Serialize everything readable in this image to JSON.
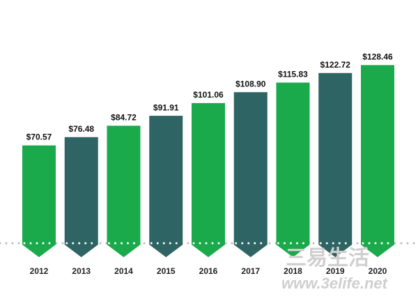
{
  "chart_data": {
    "type": "bar",
    "categories": [
      "2012",
      "2013",
      "2014",
      "2015",
      "2016",
      "2017",
      "2018",
      "2019",
      "2020"
    ],
    "values": [
      70.57,
      76.48,
      84.72,
      91.91,
      101.06,
      108.9,
      115.83,
      122.72,
      128.46
    ],
    "value_labels": [
      "$70.57",
      "$76.48",
      "$84.72",
      "$91.91",
      "$101.06",
      "$108.90",
      "$115.83",
      "$122.72",
      "$128.46"
    ],
    "colors": [
      "#1aaa4b",
      "#2e6463",
      "#1aaa4b",
      "#2e6463",
      "#1aaa4b",
      "#2e6463",
      "#1aaa4b",
      "#2e6463",
      "#1aaa4b"
    ]
  },
  "watermark": {
    "brand": "三易生活",
    "url": "www.3elife.net"
  }
}
